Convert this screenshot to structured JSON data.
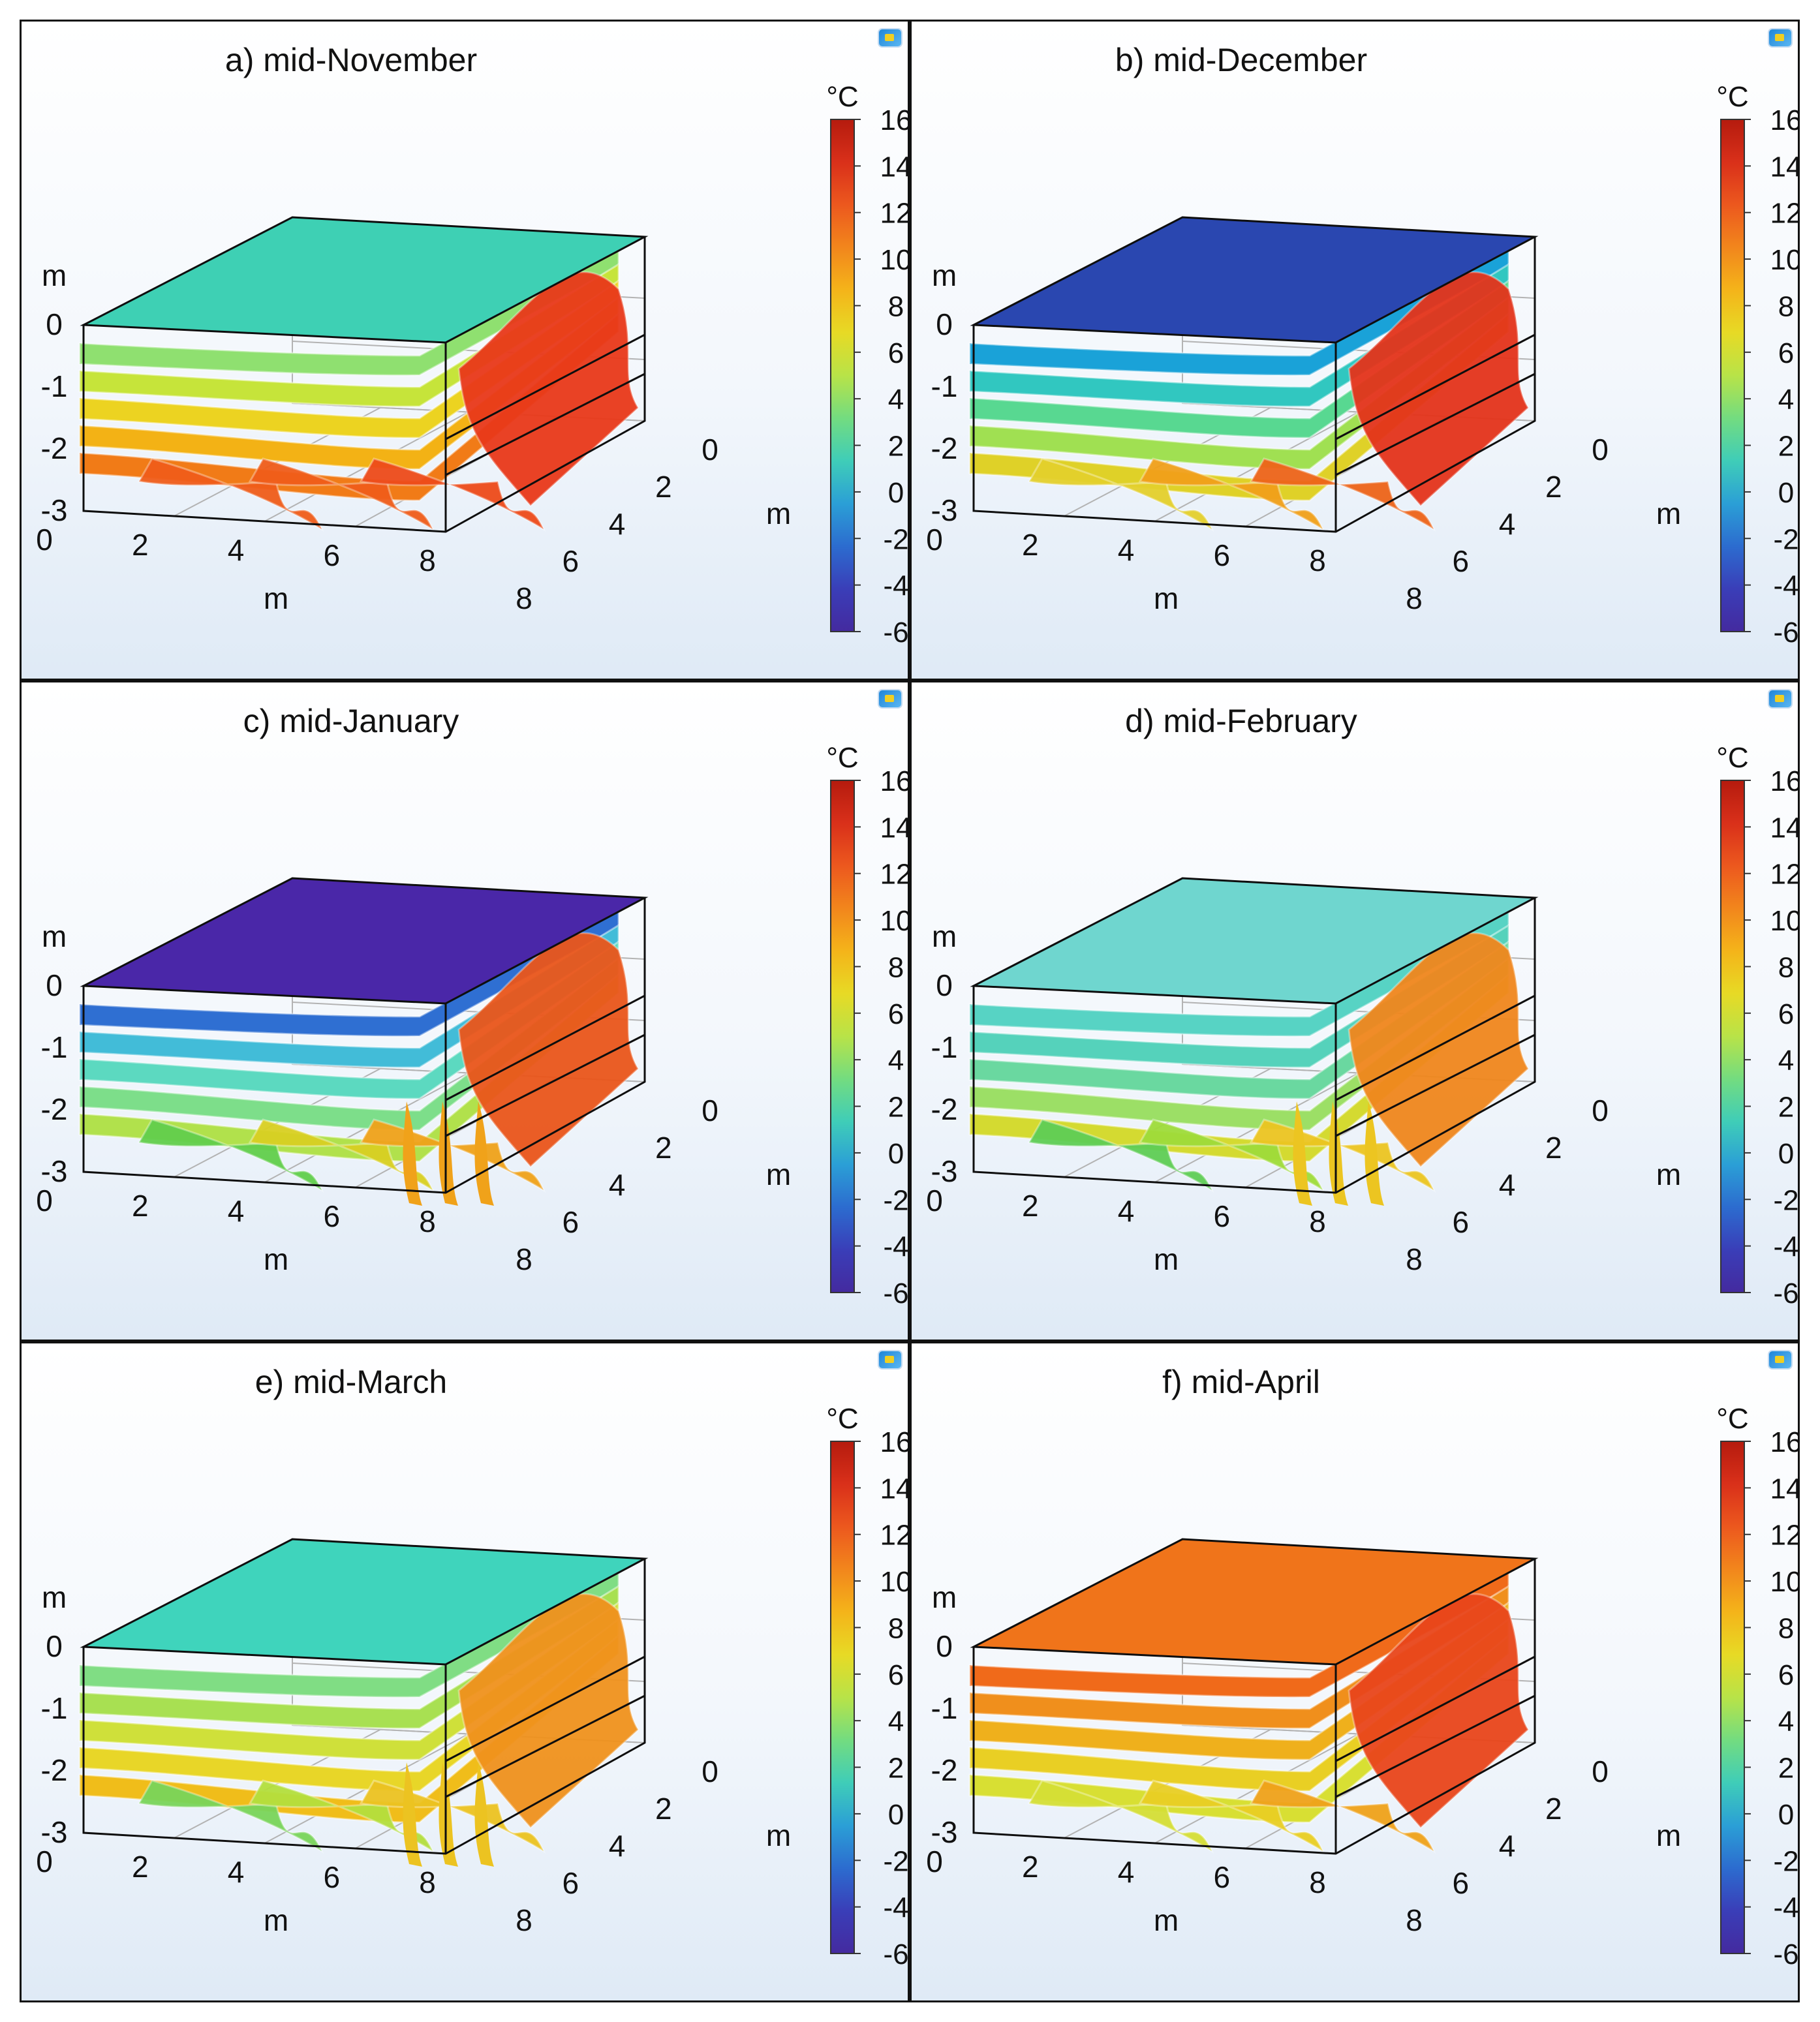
{
  "chart_data": [
    {
      "type": "isosurface-3d",
      "title": "a) mid-November",
      "top_color": "#3ed0b4",
      "layer_colors": [
        "#8fe070",
        "#c6e43a",
        "#ecd321",
        "#f3b215",
        "#f17b17"
      ],
      "front_colors": [
        "#f05d1a",
        "#f05d1a",
        "#ee4b1a"
      ],
      "right_color": "#e9391a",
      "right_stubs": false
    },
    {
      "type": "isosurface-3d",
      "title": "b) mid-December",
      "top_color": "#2a47b0",
      "layer_colors": [
        "#1aa2d8",
        "#31c7c0",
        "#58d891",
        "#a0e052",
        "#dfd128"
      ],
      "front_colors": [
        "#e4d02c",
        "#f1a01a",
        "#ee6419"
      ],
      "right_color": "#e4341b",
      "right_stubs": false
    },
    {
      "type": "isosurface-3d",
      "title": "c) mid-January",
      "top_color": "#4a27a8",
      "layer_colors": [
        "#2f6fd2",
        "#42bcd8",
        "#5cd9c0",
        "#7dde8a",
        "#b1e14c"
      ],
      "front_colors": [
        "#62cf4c",
        "#d9d022",
        "#f0a21a"
      ],
      "right_color": "#ea561b",
      "right_stubs": true
    },
    {
      "type": "isosurface-3d",
      "title": "d) mid-February",
      "top_color": "#6fd6cf",
      "layer_colors": [
        "#57d3c4",
        "#55d2bb",
        "#6ad8a0",
        "#9cdf66",
        "#d4da31"
      ],
      "front_colors": [
        "#5fce55",
        "#9fdc3a",
        "#ecc521"
      ],
      "right_color": "#f0871d",
      "right_stubs": true
    },
    {
      "type": "isosurface-3d",
      "title": "e) mid-March",
      "top_color": "#3fd4bc",
      "layer_colors": [
        "#80dd84",
        "#a8e052",
        "#cfe03a",
        "#e8d628",
        "#f0bd1a"
      ],
      "front_colors": [
        "#7ad55a",
        "#b4df3d",
        "#ecc321"
      ],
      "right_color": "#f0921d",
      "right_stubs": true
    },
    {
      "type": "isosurface-3d",
      "title": "f) mid-April",
      "top_color": "#f0741a",
      "layer_colors": [
        "#f06a1a",
        "#f08f1c",
        "#efb01c",
        "#e9cf24",
        "#d8df33"
      ],
      "front_colors": [
        "#d5df36",
        "#e9cf24",
        "#f0a21a"
      ],
      "right_color": "#e9461b",
      "right_stubs": false
    }
  ],
  "axes": {
    "unit": "m",
    "z_ticks": [
      "0",
      "-1",
      "-2",
      "-3"
    ],
    "x_ticks": [
      "0",
      "2",
      "4",
      "6",
      "8"
    ],
    "y_ticks": [
      "0",
      "2",
      "4",
      "6",
      "8"
    ]
  },
  "colorbar": {
    "unit": "°C",
    "ticks": [
      "16",
      "14",
      "12",
      "10",
      "8",
      "6",
      "4",
      "2",
      "0",
      "-2",
      "-4",
      "-6"
    ],
    "colors": [
      "#b51b0e",
      "#d9301a",
      "#ec581e",
      "#f2861c",
      "#f4b41a",
      "#e7da25",
      "#b8e348",
      "#73dc80",
      "#3fcdb8",
      "#2b9fd6",
      "#2c6ccf",
      "#3a3eb8",
      "#442a9f"
    ]
  }
}
